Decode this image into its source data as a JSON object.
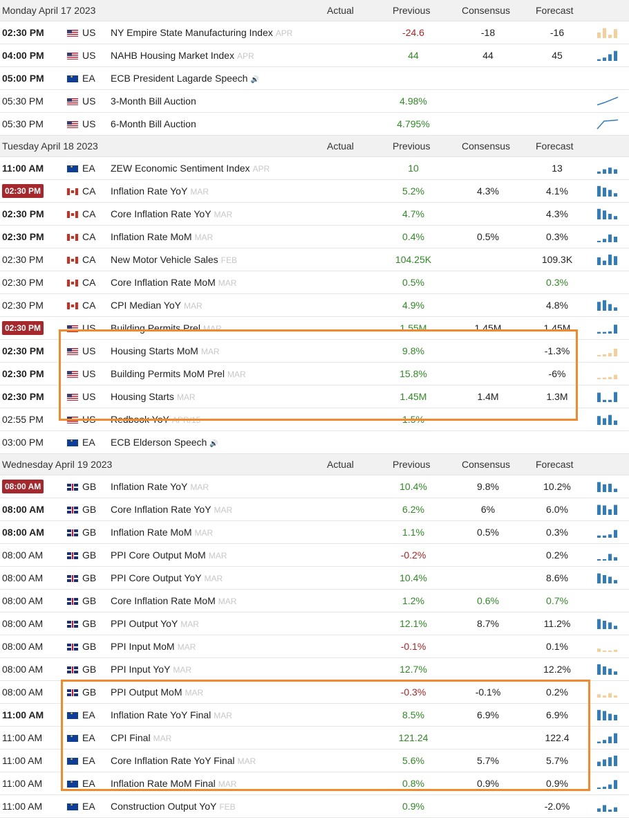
{
  "columns": {
    "actual": "Actual",
    "previous": "Previous",
    "consensus": "Consensus",
    "forecast": "Forecast"
  },
  "days": [
    {
      "date": "Monday April 17 2023",
      "events": [
        {
          "time": "02:30 PM",
          "bold": true,
          "live": false,
          "flag": "us",
          "country": "US",
          "event": "NY Empire State Manufacturing Index",
          "ref": "APR",
          "speech": false,
          "previous": "-24.6",
          "previous_color": "red",
          "consensus": "-18",
          "consensus_color": "",
          "forecast": "-16",
          "forecast_color": "",
          "spark": [
            0.5,
            0.9,
            0.3,
            0.8
          ],
          "spark_color": "#f5cf9a"
        },
        {
          "time": "04:00 PM",
          "bold": true,
          "live": false,
          "flag": "us",
          "country": "US",
          "event": "NAHB Housing Market Index",
          "ref": "APR",
          "speech": false,
          "previous": "44",
          "previous_color": "green",
          "consensus": "44",
          "consensus_color": "",
          "forecast": "45",
          "forecast_color": "",
          "spark": [
            0.15,
            0.3,
            0.6,
            0.9
          ],
          "spark_color": "#2f7cbf"
        },
        {
          "time": "05:00 PM",
          "bold": true,
          "live": false,
          "flag": "ea",
          "country": "EA",
          "event": "ECB President Lagarde Speech",
          "ref": "",
          "speech": true,
          "previous": "",
          "previous_color": "",
          "consensus": "",
          "consensus_color": "",
          "forecast": "",
          "forecast_color": "",
          "spark": [],
          "spark_color": ""
        },
        {
          "time": "05:30 PM",
          "bold": false,
          "live": false,
          "flag": "us",
          "country": "US",
          "event": "3-Month Bill Auction",
          "ref": "",
          "speech": false,
          "previous": "4.98%",
          "previous_color": "green",
          "consensus": "",
          "consensus_color": "",
          "forecast": "",
          "forecast_color": "",
          "spark": [],
          "spark_color": "",
          "line": [
            0.15,
            0.35,
            0.6,
            0.85
          ]
        },
        {
          "time": "05:30 PM",
          "bold": false,
          "live": false,
          "flag": "us",
          "country": "US",
          "event": "6-Month Bill Auction",
          "ref": "",
          "speech": false,
          "previous": "4.795%",
          "previous_color": "green",
          "consensus": "",
          "consensus_color": "",
          "forecast": "",
          "forecast_color": "",
          "spark": [],
          "spark_color": "",
          "line": [
            0.05,
            0.75,
            0.8,
            0.85
          ]
        }
      ]
    },
    {
      "date": "Tuesday April 18 2023",
      "events": [
        {
          "time": "11:00 AM",
          "bold": true,
          "live": false,
          "flag": "ea",
          "country": "EA",
          "event": "ZEW Economic Sentiment Index",
          "ref": "APR",
          "speech": false,
          "previous": "10",
          "previous_color": "green",
          "consensus": "",
          "consensus_color": "",
          "forecast": "13",
          "forecast_color": "",
          "spark": [
            0.2,
            0.4,
            0.55,
            0.4
          ],
          "spark_color": "#2f7cbf"
        },
        {
          "time": "02:30 PM",
          "bold": false,
          "live": true,
          "flag": "ca",
          "country": "CA",
          "event": "Inflation Rate YoY",
          "ref": "MAR",
          "speech": false,
          "previous": "5.2%",
          "previous_color": "green",
          "consensus": "4.3%",
          "consensus_color": "",
          "forecast": "4.1%",
          "forecast_color": "",
          "spark": [
            0.95,
            0.8,
            0.6,
            0.3
          ],
          "spark_color": "#2f7cbf"
        },
        {
          "time": "02:30 PM",
          "bold": true,
          "live": false,
          "flag": "ca",
          "country": "CA",
          "event": "Core Inflation Rate YoY",
          "ref": "MAR",
          "speech": false,
          "previous": "4.7%",
          "previous_color": "green",
          "consensus": "",
          "consensus_color": "",
          "forecast": "4.3%",
          "forecast_color": "",
          "spark": [
            0.95,
            0.8,
            0.5,
            0.3
          ],
          "spark_color": "#2f7cbf"
        },
        {
          "time": "02:30 PM",
          "bold": true,
          "live": false,
          "flag": "ca",
          "country": "CA",
          "event": "Inflation Rate MoM",
          "ref": "MAR",
          "speech": false,
          "previous": "0.4%",
          "previous_color": "green",
          "consensus": "0.5%",
          "consensus_color": "",
          "forecast": "0.3%",
          "forecast_color": "",
          "spark": [
            0.1,
            0.3,
            0.7,
            0.5
          ],
          "spark_color": "#2f7cbf"
        },
        {
          "time": "02:30 PM",
          "bold": false,
          "live": false,
          "flag": "ca",
          "country": "CA",
          "event": "New Motor Vehicle Sales",
          "ref": "FEB",
          "speech": false,
          "previous": "104.25K",
          "previous_color": "green",
          "consensus": "",
          "consensus_color": "",
          "forecast": "109.3K",
          "forecast_color": "",
          "spark": [
            0.7,
            0.4,
            0.95,
            0.8
          ],
          "spark_color": "#2f7cbf"
        },
        {
          "time": "02:30 PM",
          "bold": false,
          "live": false,
          "flag": "ca",
          "country": "CA",
          "event": "Core Inflation Rate MoM",
          "ref": "MAR",
          "speech": false,
          "previous": "0.5%",
          "previous_color": "green",
          "consensus": "",
          "consensus_color": "",
          "forecast": "0.3%",
          "forecast_color": "green",
          "spark": [],
          "spark_color": ""
        },
        {
          "time": "02:30 PM",
          "bold": false,
          "live": false,
          "flag": "ca",
          "country": "CA",
          "event": "CPI Median YoY",
          "ref": "MAR",
          "speech": false,
          "previous": "4.9%",
          "previous_color": "green",
          "consensus": "",
          "consensus_color": "",
          "forecast": "4.8%",
          "forecast_color": "",
          "spark": [
            0.8,
            0.95,
            0.6,
            0.3
          ],
          "spark_color": "#2f7cbf"
        },
        {
          "time": "02:30 PM",
          "bold": false,
          "live": true,
          "flag": "us",
          "country": "US",
          "event": "Building Permits Prel",
          "ref": "MAR",
          "speech": false,
          "previous": "1.55M",
          "previous_color": "green",
          "consensus": "1.45M",
          "consensus_color": "",
          "forecast": "1.45M",
          "forecast_color": "",
          "spark": [
            0.15,
            0.15,
            0.2,
            0.8
          ],
          "spark_color": "#2f7cbf"
        },
        {
          "time": "02:30 PM",
          "bold": true,
          "live": false,
          "flag": "us",
          "country": "US",
          "event": "Housing Starts MoM",
          "ref": "MAR",
          "speech": false,
          "previous": "9.8%",
          "previous_color": "green",
          "consensus": "",
          "consensus_color": "",
          "forecast": "-1.3%",
          "forecast_color": "",
          "spark": [
            0.1,
            0.2,
            0.3,
            0.7
          ],
          "spark_color": "#f5cf9a"
        },
        {
          "time": "02:30 PM",
          "bold": true,
          "live": false,
          "flag": "us",
          "country": "US",
          "event": "Building Permits MoM Prel",
          "ref": "MAR",
          "speech": false,
          "previous": "15.8%",
          "previous_color": "green",
          "consensus": "",
          "consensus_color": "",
          "forecast": "-6%",
          "forecast_color": "",
          "spark": [
            0.1,
            0.15,
            0.2,
            0.4
          ],
          "spark_color": "#f5cf9a"
        },
        {
          "time": "02:30 PM",
          "bold": true,
          "live": false,
          "flag": "us",
          "country": "US",
          "event": "Housing Starts",
          "ref": "MAR",
          "speech": false,
          "previous": "1.45M",
          "previous_color": "green",
          "consensus": "1.4M",
          "consensus_color": "",
          "forecast": "1.3M",
          "forecast_color": "",
          "spark": [
            0.85,
            0.2,
            0.2,
            0.9
          ],
          "spark_color": "#2f7cbf"
        },
        {
          "time": "02:55 PM",
          "bold": false,
          "live": false,
          "flag": "us",
          "country": "US",
          "event": "Redbook YoY",
          "ref": "APR/15",
          "speech": false,
          "previous": "1.5%",
          "previous_color": "green",
          "consensus": "",
          "consensus_color": "",
          "forecast": "",
          "forecast_color": "",
          "spark": [
            0.8,
            0.6,
            0.9,
            0.4
          ],
          "spark_color": "#2f7cbf"
        },
        {
          "time": "03:00 PM",
          "bold": false,
          "live": false,
          "flag": "ea",
          "country": "EA",
          "event": "ECB Elderson Speech",
          "ref": "",
          "speech": true,
          "previous": "",
          "previous_color": "",
          "consensus": "",
          "consensus_color": "",
          "forecast": "",
          "forecast_color": "",
          "spark": [],
          "spark_color": ""
        }
      ]
    },
    {
      "date": "Wednesday April 19 2023",
      "events": [
        {
          "time": "08:00 AM",
          "bold": false,
          "live": true,
          "flag": "gb",
          "country": "GB",
          "event": "Inflation Rate YoY",
          "ref": "MAR",
          "speech": false,
          "previous": "10.4%",
          "previous_color": "green",
          "consensus": "9.8%",
          "consensus_color": "",
          "forecast": "10.2%",
          "forecast_color": "",
          "spark": [
            0.9,
            0.7,
            0.75,
            0.3
          ],
          "spark_color": "#2f7cbf"
        },
        {
          "time": "08:00 AM",
          "bold": true,
          "live": false,
          "flag": "gb",
          "country": "GB",
          "event": "Core Inflation Rate YoY",
          "ref": "MAR",
          "speech": false,
          "previous": "6.2%",
          "previous_color": "green",
          "consensus": "6%",
          "consensus_color": "",
          "forecast": "6.0%",
          "forecast_color": "",
          "spark": [
            0.9,
            0.85,
            0.5,
            0.9
          ],
          "spark_color": "#2f7cbf"
        },
        {
          "time": "08:00 AM",
          "bold": true,
          "live": false,
          "flag": "gb",
          "country": "GB",
          "event": "Inflation Rate MoM",
          "ref": "MAR",
          "speech": false,
          "previous": "1.1%",
          "previous_color": "green",
          "consensus": "0.5%",
          "consensus_color": "",
          "forecast": "0.3%",
          "forecast_color": "",
          "spark": [
            0.2,
            0.2,
            0.3,
            0.7
          ],
          "spark_color": "#2f7cbf"
        },
        {
          "time": "08:00 AM",
          "bold": false,
          "live": false,
          "flag": "gb",
          "country": "GB",
          "event": "PPI Core Output MoM",
          "ref": "MAR",
          "speech": false,
          "previous": "-0.2%",
          "previous_color": "red",
          "consensus": "",
          "consensus_color": "",
          "forecast": "0.2%",
          "forecast_color": "",
          "spark": [
            0.1,
            0.05,
            0.6,
            0.3
          ],
          "spark_color": "#2f7cbf"
        },
        {
          "time": "08:00 AM",
          "bold": false,
          "live": false,
          "flag": "gb",
          "country": "GB",
          "event": "PPI Core Output YoY",
          "ref": "MAR",
          "speech": false,
          "previous": "10.4%",
          "previous_color": "green",
          "consensus": "",
          "consensus_color": "",
          "forecast": "8.6%",
          "forecast_color": "",
          "spark": [
            0.9,
            0.75,
            0.6,
            0.3
          ],
          "spark_color": "#2f7cbf"
        },
        {
          "time": "08:00 AM",
          "bold": false,
          "live": false,
          "flag": "gb",
          "country": "GB",
          "event": "Core Inflation Rate MoM",
          "ref": "MAR",
          "speech": false,
          "previous": "1.2%",
          "previous_color": "green",
          "consensus": "0.6%",
          "consensus_color": "green",
          "forecast": "0.7%",
          "forecast_color": "green",
          "spark": [],
          "spark_color": ""
        },
        {
          "time": "08:00 AM",
          "bold": false,
          "live": false,
          "flag": "gb",
          "country": "GB",
          "event": "PPI Output YoY",
          "ref": "MAR",
          "speech": false,
          "previous": "12.1%",
          "previous_color": "green",
          "consensus": "8.7%",
          "consensus_color": "",
          "forecast": "11.2%",
          "forecast_color": "",
          "spark": [
            0.9,
            0.75,
            0.6,
            0.3
          ],
          "spark_color": "#2f7cbf"
        },
        {
          "time": "08:00 AM",
          "bold": false,
          "live": false,
          "flag": "gb",
          "country": "GB",
          "event": "PPI Input MoM",
          "ref": "MAR",
          "speech": false,
          "previous": "-0.1%",
          "previous_color": "red",
          "consensus": "",
          "consensus_color": "",
          "forecast": "0.1%",
          "forecast_color": "",
          "spark": [
            0.3,
            0.1,
            0.05,
            0.2
          ],
          "spark_color": "#f5cf9a"
        },
        {
          "time": "08:00 AM",
          "bold": false,
          "live": false,
          "flag": "gb",
          "country": "GB",
          "event": "PPI Input YoY",
          "ref": "MAR",
          "speech": false,
          "previous": "12.7%",
          "previous_color": "green",
          "consensus": "",
          "consensus_color": "",
          "forecast": "12.2%",
          "forecast_color": "",
          "spark": [
            0.95,
            0.75,
            0.55,
            0.3
          ],
          "spark_color": "#2f7cbf"
        },
        {
          "time": "08:00 AM",
          "bold": false,
          "live": false,
          "flag": "gb",
          "country": "GB",
          "event": "PPI Output MoM",
          "ref": "MAR",
          "speech": false,
          "previous": "-0.3%",
          "previous_color": "red",
          "consensus": "-0.1%",
          "consensus_color": "",
          "forecast": "0.2%",
          "forecast_color": "",
          "spark": [
            0.3,
            0.2,
            0.4,
            0.2
          ],
          "spark_color": "#f5cf9a"
        },
        {
          "time": "11:00 AM",
          "bold": true,
          "live": false,
          "flag": "ea",
          "country": "EA",
          "event": "Inflation Rate YoY Final",
          "ref": "MAR",
          "speech": false,
          "previous": "8.5%",
          "previous_color": "green",
          "consensus": "6.9%",
          "consensus_color": "",
          "forecast": "6.9%",
          "forecast_color": "",
          "spark": [
            0.95,
            0.85,
            0.6,
            0.5
          ],
          "spark_color": "#2f7cbf"
        },
        {
          "time": "11:00 AM",
          "bold": false,
          "live": false,
          "flag": "ea",
          "country": "EA",
          "event": "CPI Final",
          "ref": "MAR",
          "speech": false,
          "previous": "121.24",
          "previous_color": "green",
          "consensus": "",
          "consensus_color": "",
          "forecast": "122.4",
          "forecast_color": "",
          "spark": [
            0.15,
            0.3,
            0.6,
            0.9
          ],
          "spark_color": "#2f7cbf"
        },
        {
          "time": "11:00 AM",
          "bold": false,
          "live": false,
          "flag": "ea",
          "country": "EA",
          "event": "Core Inflation Rate YoY Final",
          "ref": "MAR",
          "speech": false,
          "previous": "5.6%",
          "previous_color": "green",
          "consensus": "5.7%",
          "consensus_color": "",
          "forecast": "5.7%",
          "forecast_color": "",
          "spark": [
            0.4,
            0.6,
            0.8,
            0.95
          ],
          "spark_color": "#2f7cbf"
        },
        {
          "time": "11:00 AM",
          "bold": false,
          "live": false,
          "flag": "ea",
          "country": "EA",
          "event": "Inflation Rate MoM Final",
          "ref": "MAR",
          "speech": false,
          "previous": "0.8%",
          "previous_color": "green",
          "consensus": "0.9%",
          "consensus_color": "",
          "forecast": "0.9%",
          "forecast_color": "",
          "spark": [
            0.1,
            0.2,
            0.4,
            0.8
          ],
          "spark_color": "#2f7cbf"
        },
        {
          "time": "11:00 AM",
          "bold": false,
          "live": false,
          "flag": "ea",
          "country": "EA",
          "event": "Construction Output YoY",
          "ref": "FEB",
          "speech": false,
          "previous": "0.9%",
          "previous_color": "green",
          "consensus": "",
          "consensus_color": "",
          "forecast": "-2.0%",
          "forecast_color": "",
          "spark": [
            0.3,
            0.6,
            0.2,
            0.4
          ],
          "spark_color": "#2f7cbf"
        }
      ]
    }
  ]
}
